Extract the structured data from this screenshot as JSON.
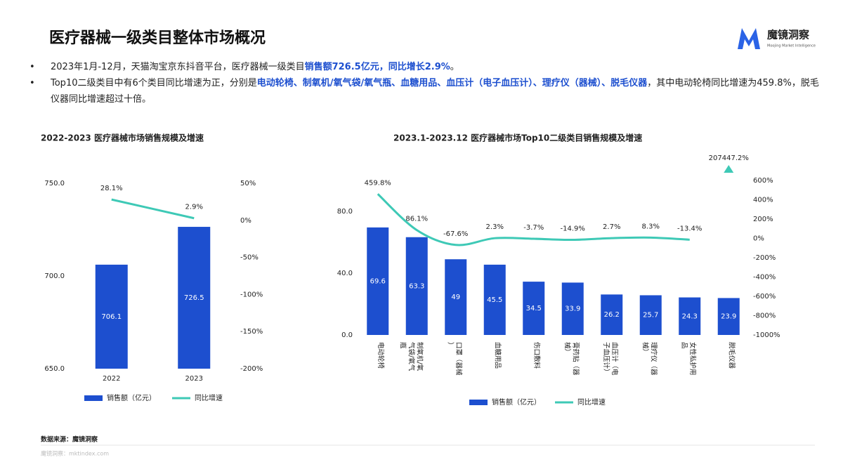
{
  "header": {
    "title": "医疗器械一级类目整体市场概况",
    "logo_name": "魔镜洞察",
    "logo_sub": "Moojing Market Intelligence"
  },
  "bullets": [
    {
      "segments": [
        {
          "text": "2023年1月-12月，天猫淘宝京东抖音平台，医疗器械一级类目",
          "highlight": false
        },
        {
          "text": "销售额726.5亿元，同比增长2.9%",
          "highlight": true
        },
        {
          "text": "。",
          "highlight": false
        }
      ]
    },
    {
      "segments": [
        {
          "text": "Top10二级类目中有6个类目同比增速为正，分别是",
          "highlight": false
        },
        {
          "text": "电动轮椅、制氧机/氧气袋/氧气瓶、血糖用品、血压计（电子血压计）、理疗仪（器械）、脱毛仪器",
          "highlight": true
        },
        {
          "text": "，其中电动轮椅同比增速为459.8%，脱毛仪器同比增速超过十倍。",
          "highlight": false
        }
      ]
    }
  ],
  "chart_data": [
    {
      "type": "bar",
      "title": "2022-2023 医疗器械市场销售规模及增速",
      "categories": [
        "2022",
        "2023"
      ],
      "series": [
        {
          "name": "销售额（亿元）",
          "type": "bar",
          "color": "#1d4fcf",
          "values": [
            706.1,
            726.5
          ]
        },
        {
          "name": "同比增速",
          "type": "line",
          "axis": "y2",
          "color": "#3ec9b6",
          "values": [
            28.1,
            2.9
          ],
          "value_labels": [
            "28.1%",
            "2.9%"
          ]
        }
      ],
      "ylim": [
        650,
        750
      ],
      "yticks": [
        {
          "value": 650,
          "label": "650.0"
        },
        {
          "value": 700,
          "label": "700.0"
        },
        {
          "value": 750,
          "label": "750.0"
        }
      ],
      "y2lim": [
        -200,
        50
      ],
      "y2ticks": [
        {
          "value": -200,
          "label": "-200%"
        },
        {
          "value": -150,
          "label": "-150%"
        },
        {
          "value": -100,
          "label": "-100%"
        },
        {
          "value": -50,
          "label": "-50%"
        },
        {
          "value": 0,
          "label": "0%"
        },
        {
          "value": 50,
          "label": "50%"
        }
      ],
      "legend": "bottom"
    },
    {
      "type": "bar",
      "title": "2023.1-2023.12 医疗器械市场Top10二级类目销售规模及增速",
      "categories": [
        "电动轮椅",
        "制氧机/氧气袋/氧气瓶",
        "口罩（器械）",
        "血糖用品",
        "伤口敷料",
        "膏药贴（器械）",
        "血压计（电子血压计）",
        "理疗仪（器械）",
        "女性私护用品",
        "脱毛仪器"
      ],
      "series": [
        {
          "name": "销售额（亿元）",
          "type": "bar",
          "color": "#1d4fcf",
          "values": [
            69.6,
            63.3,
            49.0,
            45.5,
            34.5,
            33.9,
            26.2,
            25.7,
            24.3,
            23.9
          ]
        },
        {
          "name": "同比增速",
          "type": "line",
          "axis": "y2",
          "color": "#3ec9b6",
          "values": [
            459.8,
            86.1,
            -67.6,
            2.3,
            -3.7,
            -14.9,
            2.7,
            8.3,
            -13.4,
            207447.2
          ],
          "value_labels": [
            "459.8%",
            "86.1%",
            "-67.6%",
            "2.3%",
            "-3.7%",
            "-14.9%",
            "2.7%",
            "8.3%",
            "-13.4%",
            "207447.2%"
          ]
        }
      ],
      "ylim": [
        0,
        100
      ],
      "yticks": [
        {
          "value": 0,
          "label": "0.0"
        },
        {
          "value": 40,
          "label": "40.0"
        },
        {
          "value": 80,
          "label": "80.0"
        }
      ],
      "y2lim": [
        -1000,
        600
      ],
      "y2ticks": [
        {
          "value": -1000,
          "label": "-1000%"
        },
        {
          "value": -800,
          "label": "-800%"
        },
        {
          "value": -600,
          "label": "-600%"
        },
        {
          "value": -400,
          "label": "-400%"
        },
        {
          "value": -200,
          "label": "-200%"
        },
        {
          "value": 0,
          "label": "0%"
        },
        {
          "value": 200,
          "label": "200%"
        },
        {
          "value": 400,
          "label": "400%"
        },
        {
          "value": 600,
          "label": "600%"
        }
      ],
      "legend": "bottom"
    }
  ],
  "footer": {
    "source": "数据来源：魔镜洞察",
    "site": "魔镜洞察：mktindex.com"
  }
}
